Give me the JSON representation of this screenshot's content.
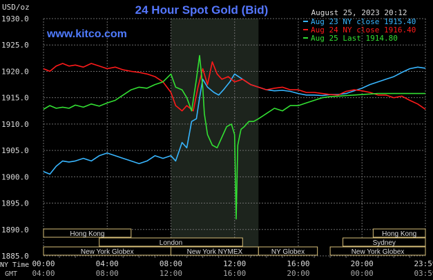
{
  "header": {
    "title": "24 Hour Spot Gold (Bid)",
    "unit": "USD/oz",
    "date": "August 25, 2023 20:12",
    "site": "www.kitco.com"
  },
  "legend": [
    {
      "label": "Aug 23 NY close 1915.40",
      "color": "#38b6ff"
    },
    {
      "label": "Aug 24 NY close 1916.40",
      "color": "#ff1a1a"
    },
    {
      "label": "Aug 25 Last 1914.80",
      "color": "#33e033"
    }
  ],
  "x_axis": {
    "ny_time_label": "NY Time",
    "gmt_label": "GMT",
    "ny_ticks": [
      "00:00",
      "04:00",
      "08:00",
      "12:00",
      "16:00",
      "20:00",
      "23:59"
    ],
    "gmt_ticks": [
      "04:00",
      "08:00",
      "12:00",
      "16:00",
      "20:00",
      "00:00",
      "03:59"
    ]
  },
  "sessions": [
    {
      "label": "Hong Kong",
      "start": 0.0,
      "end": 5.5,
      "row": 0
    },
    {
      "label": "Hong Kong",
      "start": 20.7,
      "end": 23.98,
      "row": 0
    },
    {
      "label": "London",
      "start": 3.5,
      "end": 12.5,
      "row": 1
    },
    {
      "label": "Sydney",
      "start": 18.8,
      "end": 23.98,
      "row": 1
    },
    {
      "label": "New York Globex",
      "start": 0.0,
      "end": 8.0,
      "row": 2
    },
    {
      "label": "New York NYMEX",
      "start": 8.0,
      "end": 13.5,
      "row": 2
    },
    {
      "label": "NY Globex",
      "start": 13.5,
      "end": 17.2,
      "row": 2
    },
    {
      "label": "New York Globex",
      "start": 18.0,
      "end": 23.98,
      "row": 2
    }
  ],
  "colors": {
    "background": "#000000",
    "grid": "#6e6e6e",
    "shaded_band": "#1d241d",
    "title": "#5577ff",
    "site": "#4f7bff",
    "text": "#dddddd",
    "session_bg": "#000000",
    "session_border": "#d9c07a"
  },
  "chart_data": {
    "type": "line",
    "ylabel": "USD/oz",
    "xlim": [
      0,
      23.98
    ],
    "ylim": [
      1885,
      1930
    ],
    "grid": true,
    "legend_position": "top-right",
    "yticks": [
      1885.0,
      1890.0,
      1895.0,
      1900.0,
      1905.0,
      1910.0,
      1915.0,
      1920.0,
      1925.0,
      1930.0
    ],
    "shaded_range": [
      8.0,
      13.5
    ],
    "series": [
      {
        "name": "Aug 23 NY close 1915.40",
        "color": "#38b6ff",
        "x": [
          0,
          0.4,
          0.8,
          1.2,
          1.6,
          2.0,
          2.5,
          3.0,
          3.5,
          4.0,
          4.5,
          5.0,
          5.5,
          6.0,
          6.5,
          7.0,
          7.5,
          8.0,
          8.3,
          8.7,
          9.0,
          9.3,
          9.6,
          9.8,
          10.0,
          10.3,
          10.7,
          11.0,
          11.3,
          11.7,
          12.0,
          12.5,
          13.0,
          13.5,
          14.0,
          14.5,
          15.0,
          15.5,
          16.0,
          16.5,
          17.0,
          17.5,
          18.0,
          18.5,
          19.0,
          19.5,
          20.0,
          20.5,
          21.0,
          21.5,
          22.0,
          22.5,
          23.0,
          23.5,
          23.98
        ],
        "y": [
          1901.0,
          1900.5,
          1902.0,
          1903.0,
          1902.8,
          1903.0,
          1903.5,
          1903.0,
          1904.0,
          1904.5,
          1904.0,
          1903.5,
          1903.0,
          1902.5,
          1903.0,
          1904.0,
          1903.5,
          1904.0,
          1903.0,
          1906.5,
          1905.5,
          1910.5,
          1911.0,
          1915.0,
          1918.5,
          1917.0,
          1916.0,
          1915.5,
          1916.5,
          1918.0,
          1919.5,
          1918.5,
          1917.5,
          1917.0,
          1916.5,
          1916.3,
          1916.4,
          1916.2,
          1915.8,
          1915.5,
          1915.5,
          1915.4,
          1915.6,
          1915.6,
          1915.8,
          1916.3,
          1916.8,
          1917.5,
          1918.0,
          1918.5,
          1919.0,
          1919.8,
          1920.5,
          1920.8,
          1920.6
        ]
      },
      {
        "name": "Aug 24 NY close 1916.40",
        "color": "#ff1a1a",
        "x": [
          0,
          0.4,
          0.8,
          1.2,
          1.6,
          2.0,
          2.5,
          3.0,
          3.5,
          4.0,
          4.5,
          5.0,
          5.5,
          6.0,
          6.5,
          7.0,
          7.5,
          8.0,
          8.3,
          8.7,
          9.0,
          9.4,
          9.7,
          10.0,
          10.3,
          10.6,
          10.9,
          11.2,
          11.6,
          12.0,
          12.5,
          13.0,
          13.5,
          14.0,
          14.5,
          15.0,
          15.5,
          16.0,
          16.5,
          17.0,
          17.5,
          18.0,
          18.5,
          19.0,
          19.5,
          20.0,
          20.5,
          21.0,
          21.5,
          22.0,
          22.5,
          23.0,
          23.5,
          23.98
        ],
        "y": [
          1920.5,
          1920.0,
          1921.0,
          1921.5,
          1921.0,
          1921.2,
          1920.8,
          1921.5,
          1921.0,
          1920.5,
          1920.8,
          1920.3,
          1920.0,
          1919.8,
          1919.5,
          1919.0,
          1918.0,
          1916.0,
          1913.5,
          1912.5,
          1913.5,
          1912.5,
          1917.0,
          1920.5,
          1917.5,
          1921.8,
          1919.5,
          1918.5,
          1919.0,
          1918.0,
          1918.5,
          1917.5,
          1917.0,
          1916.5,
          1916.8,
          1917.0,
          1916.5,
          1916.5,
          1916.0,
          1916.0,
          1915.8,
          1915.6,
          1915.5,
          1916.2,
          1916.5,
          1916.3,
          1916.0,
          1915.5,
          1915.5,
          1915.0,
          1915.3,
          1914.5,
          1913.8,
          1912.8
        ]
      },
      {
        "name": "Aug 25 Last 1914.80",
        "color": "#33e033",
        "x": [
          0,
          0.4,
          0.8,
          1.2,
          1.6,
          2.0,
          2.5,
          3.0,
          3.5,
          4.0,
          4.5,
          5.0,
          5.5,
          6.0,
          6.5,
          7.0,
          7.5,
          8.0,
          8.3,
          8.7,
          9.0,
          9.3,
          9.6,
          9.8,
          10.0,
          10.1,
          10.3,
          10.6,
          10.9,
          11.2,
          11.5,
          11.8,
          12.0,
          12.1,
          12.2,
          12.3,
          12.4,
          12.6,
          12.9,
          13.2,
          13.5,
          14.0,
          14.5,
          15.0,
          15.5,
          16.0,
          16.5,
          17.0,
          17.5,
          18.0,
          18.5,
          19.0,
          19.5,
          20.0,
          20.5,
          21.0,
          21.5,
          22.0,
          22.5,
          23.0,
          23.5,
          23.98
        ],
        "y": [
          1912.8,
          1913.5,
          1913.0,
          1913.2,
          1913.0,
          1913.6,
          1913.2,
          1913.8,
          1913.4,
          1914.0,
          1914.5,
          1915.5,
          1916.5,
          1917.0,
          1916.8,
          1917.5,
          1918.0,
          1919.5,
          1917.0,
          1916.5,
          1915.0,
          1912.5,
          1918.5,
          1923.0,
          1917.0,
          1912.0,
          1908.0,
          1906.0,
          1905.5,
          1907.5,
          1909.5,
          1910.0,
          1908.0,
          1892.0,
          1906.0,
          1907.5,
          1909.0,
          1909.5,
          1910.5,
          1910.5,
          1911.0,
          1912.0,
          1913.0,
          1912.5,
          1913.5,
          1913.5,
          1914.0,
          1914.5,
          1915.0,
          1915.2,
          1915.3,
          1915.4,
          1915.5,
          1915.6,
          1915.7,
          1915.8,
          1915.8,
          1915.8,
          1915.8,
          1915.8,
          1915.8,
          1915.8
        ]
      }
    ]
  }
}
